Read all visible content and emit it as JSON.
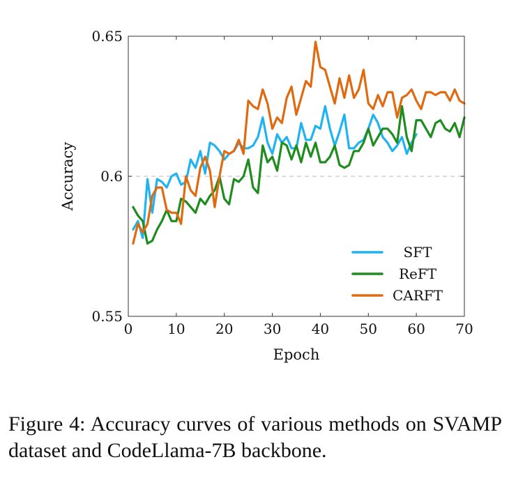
{
  "chart_data": {
    "type": "line",
    "title": "",
    "xlabel": "Epoch",
    "ylabel": "Accuracy",
    "xlim": [
      0,
      70
    ],
    "ylim": [
      0.55,
      0.65
    ],
    "xticks": [
      0,
      10,
      20,
      30,
      40,
      50,
      60,
      70
    ],
    "ytick_labels": [
      "0.55",
      "0.6",
      "0.65"
    ],
    "yticks": [
      0.55,
      0.6,
      0.65
    ],
    "grid": "dashed horizontal line at 0.6",
    "legend_position": "bottom-right",
    "series": [
      {
        "name": "SFT",
        "color": "#1fb4f0",
        "x": [
          1,
          2,
          3,
          4,
          5,
          6,
          7,
          8,
          9,
          10,
          11,
          12,
          13,
          14,
          15,
          16,
          17,
          18,
          19,
          20,
          21,
          22,
          23,
          24,
          25,
          26,
          27,
          28,
          29,
          30,
          31,
          32,
          33,
          34,
          35,
          36,
          37,
          38,
          39,
          40,
          41,
          42,
          43,
          44,
          45,
          46,
          47,
          48,
          49,
          50,
          51,
          52,
          53,
          54,
          55,
          56,
          57,
          58,
          59,
          60
        ],
        "y": [
          0.581,
          0.584,
          0.578,
          0.599,
          0.587,
          0.599,
          0.598,
          0.596,
          0.6,
          0.601,
          0.597,
          0.598,
          0.606,
          0.603,
          0.609,
          0.601,
          0.612,
          0.611,
          0.609,
          0.606,
          0.608,
          0.609,
          0.612,
          0.61,
          0.61,
          0.611,
          0.614,
          0.621,
          0.612,
          0.608,
          0.615,
          0.612,
          0.614,
          0.61,
          0.61,
          0.619,
          0.613,
          0.613,
          0.618,
          0.617,
          0.625,
          0.617,
          0.611,
          0.616,
          0.622,
          0.61,
          0.61,
          0.612,
          0.613,
          0.617,
          0.622,
          0.619,
          0.614,
          0.612,
          0.609,
          0.611,
          0.614,
          0.608,
          0.612,
          0.615
        ]
      },
      {
        "name": "ReFT",
        "color": "#1f8c1f",
        "x": [
          1,
          2,
          3,
          4,
          5,
          6,
          7,
          8,
          9,
          10,
          11,
          12,
          13,
          14,
          15,
          16,
          17,
          18,
          19,
          20,
          21,
          22,
          23,
          24,
          25,
          26,
          27,
          28,
          29,
          30,
          31,
          32,
          33,
          34,
          35,
          36,
          37,
          38,
          39,
          40,
          41,
          42,
          43,
          44,
          45,
          46,
          47,
          48,
          49,
          50,
          51,
          52,
          53,
          54,
          55,
          56,
          57,
          58,
          59,
          60,
          61,
          62,
          63,
          64,
          65,
          66,
          67,
          68,
          69,
          70
        ],
        "y": [
          0.589,
          0.586,
          0.584,
          0.576,
          0.577,
          0.581,
          0.584,
          0.588,
          0.584,
          0.584,
          0.592,
          0.591,
          0.589,
          0.587,
          0.592,
          0.59,
          0.593,
          0.595,
          0.6,
          0.592,
          0.59,
          0.599,
          0.598,
          0.6,
          0.606,
          0.596,
          0.594,
          0.611,
          0.605,
          0.607,
          0.602,
          0.612,
          0.611,
          0.606,
          0.611,
          0.605,
          0.612,
          0.607,
          0.612,
          0.605,
          0.605,
          0.607,
          0.611,
          0.604,
          0.603,
          0.604,
          0.609,
          0.609,
          0.612,
          0.617,
          0.611,
          0.614,
          0.617,
          0.617,
          0.615,
          0.612,
          0.625,
          0.614,
          0.609,
          0.62,
          0.62,
          0.617,
          0.614,
          0.619,
          0.62,
          0.617,
          0.616,
          0.619,
          0.614,
          0.621
        ]
      },
      {
        "name": "CARFT",
        "color": "#e06a10",
        "x": [
          1,
          2,
          3,
          4,
          5,
          6,
          7,
          8,
          9,
          10,
          11,
          12,
          13,
          14,
          15,
          16,
          17,
          18,
          19,
          20,
          21,
          22,
          23,
          24,
          25,
          26,
          27,
          28,
          29,
          30,
          31,
          32,
          33,
          34,
          35,
          36,
          37,
          38,
          39,
          40,
          41,
          42,
          43,
          44,
          45,
          46,
          47,
          48,
          49,
          50,
          51,
          52,
          53,
          54,
          55,
          56,
          57,
          58,
          59,
          60,
          61,
          62,
          63,
          64,
          65,
          66,
          67,
          68,
          69,
          70
        ],
        "y": [
          0.576,
          0.583,
          0.58,
          0.583,
          0.593,
          0.596,
          0.596,
          0.588,
          0.587,
          0.587,
          0.583,
          0.6,
          0.595,
          0.593,
          0.603,
          0.607,
          0.602,
          0.589,
          0.6,
          0.609,
          0.608,
          0.609,
          0.613,
          0.608,
          0.627,
          0.625,
          0.624,
          0.631,
          0.626,
          0.617,
          0.621,
          0.619,
          0.628,
          0.632,
          0.622,
          0.628,
          0.634,
          0.632,
          0.648,
          0.639,
          0.638,
          0.632,
          0.626,
          0.635,
          0.628,
          0.636,
          0.628,
          0.631,
          0.638,
          0.626,
          0.624,
          0.629,
          0.625,
          0.63,
          0.63,
          0.621,
          0.628,
          0.629,
          0.631,
          0.627,
          0.624,
          0.63,
          0.63,
          0.629,
          0.63,
          0.63,
          0.627,
          0.631,
          0.627,
          0.626
        ]
      }
    ]
  },
  "caption": "Figure 4:  Accuracy curves of various methods on SVAMP dataset and CodeLlama-7B backbone."
}
